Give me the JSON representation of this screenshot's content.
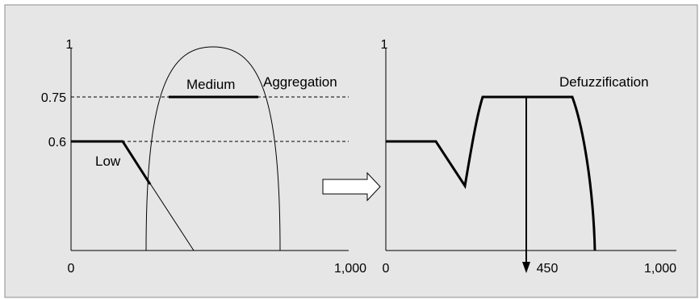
{
  "colors": {
    "panel_background": "#e6e6e6",
    "panel_border": "#8c8c8c",
    "line": "#000000",
    "arrow_fill": "#ffffff"
  },
  "left_panel": {
    "y_tick_top": "1",
    "y_tick_075": "0.75",
    "y_tick_06": "0.6",
    "x_tick_start": "0",
    "x_tick_end": "1,000",
    "label_low": "Low",
    "label_medium": "Medium",
    "label_aggregation": "Aggregation"
  },
  "right_panel": {
    "y_tick_top": "1",
    "x_tick_start": "0",
    "x_tick_mid": "450",
    "x_tick_end": "1,000",
    "label_defuzzification": "Defuzzification"
  },
  "transition_arrow_icon": "right-arrow-icon"
}
